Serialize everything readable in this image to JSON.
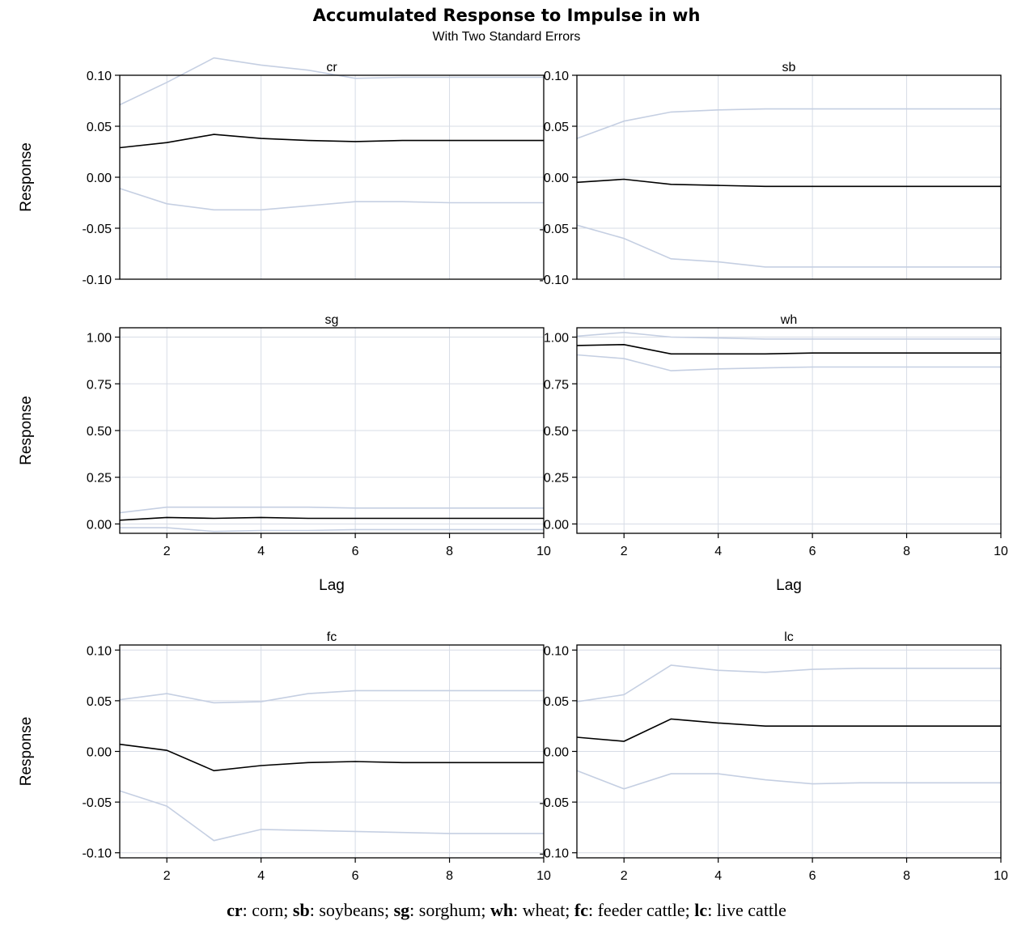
{
  "title": "Accumulated Response to Impulse in wh",
  "subtitle": "With Two Standard Errors",
  "caption": [
    {
      "code": "cr",
      "desc": ": corn; "
    },
    {
      "code": "sb",
      "desc": ": soybeans; "
    },
    {
      "code": "sg",
      "desc": ": sorghum; "
    },
    {
      "code": "wh",
      "desc": ": wheat; "
    },
    {
      "code": "fc",
      "desc": ": feeder cattle; "
    },
    {
      "code": "lc",
      "desc": ": live cattle"
    }
  ],
  "chart_data": [
    {
      "type": "line",
      "panel": "cr",
      "title": "cr",
      "ylabel": "Response",
      "xlabel": "",
      "xlim": [
        1,
        10
      ],
      "ylim": [
        -0.1,
        0.1
      ],
      "xticks": [
        2,
        4,
        6,
        8,
        10
      ],
      "yticks": [
        -0.1,
        -0.05,
        0.0,
        0.05,
        0.1
      ],
      "grid": true,
      "show_xticks": false,
      "x": [
        1,
        2,
        3,
        4,
        5,
        6,
        7,
        8,
        9,
        10
      ],
      "response": [
        0.029,
        0.034,
        0.042,
        0.038,
        0.036,
        0.035,
        0.036,
        0.036,
        0.036,
        0.036
      ],
      "upper": [
        0.071,
        0.093,
        0.117,
        0.11,
        0.105,
        0.097,
        0.098,
        0.098,
        0.098,
        0.098
      ],
      "lower": [
        -0.011,
        -0.026,
        -0.032,
        -0.032,
        -0.028,
        -0.024,
        -0.024,
        -0.025,
        -0.025,
        -0.025
      ]
    },
    {
      "type": "line",
      "panel": "sb",
      "title": "sb",
      "ylabel": "",
      "xlabel": "",
      "xlim": [
        1,
        10
      ],
      "ylim": [
        -0.1,
        0.1
      ],
      "xticks": [
        2,
        4,
        6,
        8,
        10
      ],
      "yticks": [
        -0.1,
        -0.05,
        0.0,
        0.05,
        0.1
      ],
      "grid": true,
      "show_xticks": false,
      "x": [
        1,
        2,
        3,
        4,
        5,
        6,
        7,
        8,
        9,
        10
      ],
      "response": [
        -0.005,
        -0.002,
        -0.007,
        -0.008,
        -0.009,
        -0.009,
        -0.009,
        -0.009,
        -0.009,
        -0.009
      ],
      "upper": [
        0.038,
        0.055,
        0.064,
        0.066,
        0.067,
        0.067,
        0.067,
        0.067,
        0.067,
        0.067
      ],
      "lower": [
        -0.047,
        -0.06,
        -0.08,
        -0.083,
        -0.088,
        -0.088,
        -0.088,
        -0.088,
        -0.088,
        -0.088
      ]
    },
    {
      "type": "line",
      "panel": "sg",
      "title": "sg",
      "ylabel": "Response",
      "xlabel": "Lag",
      "xlim": [
        1,
        10
      ],
      "ylim": [
        -0.05,
        1.05
      ],
      "xticks": [
        2,
        4,
        6,
        8,
        10
      ],
      "yticks": [
        0.0,
        0.25,
        0.5,
        0.75,
        1.0
      ],
      "grid": true,
      "show_xticks": true,
      "x": [
        1,
        2,
        3,
        4,
        5,
        6,
        7,
        8,
        9,
        10
      ],
      "response": [
        0.02,
        0.035,
        0.03,
        0.035,
        0.03,
        0.03,
        0.03,
        0.03,
        0.03,
        0.03
      ],
      "upper": [
        0.06,
        0.09,
        0.09,
        0.09,
        0.09,
        0.085,
        0.085,
        0.085,
        0.085,
        0.085
      ],
      "lower": [
        -0.02,
        -0.02,
        -0.04,
        -0.035,
        -0.035,
        -0.03,
        -0.03,
        -0.03,
        -0.03,
        -0.03
      ]
    },
    {
      "type": "line",
      "panel": "wh",
      "title": "wh",
      "ylabel": "",
      "xlabel": "Lag",
      "xlim": [
        1,
        10
      ],
      "ylim": [
        -0.05,
        1.05
      ],
      "xticks": [
        2,
        4,
        6,
        8,
        10
      ],
      "yticks": [
        0.0,
        0.25,
        0.5,
        0.75,
        1.0
      ],
      "grid": true,
      "show_xticks": true,
      "x": [
        1,
        2,
        3,
        4,
        5,
        6,
        7,
        8,
        9,
        10
      ],
      "response": [
        0.955,
        0.96,
        0.91,
        0.91,
        0.91,
        0.915,
        0.915,
        0.915,
        0.915,
        0.915
      ],
      "upper": [
        1.005,
        1.025,
        1.0,
        0.995,
        0.99,
        0.99,
        0.99,
        0.99,
        0.99,
        0.99
      ],
      "lower": [
        0.905,
        0.885,
        0.82,
        0.83,
        0.835,
        0.84,
        0.84,
        0.84,
        0.84,
        0.84
      ]
    },
    {
      "type": "line",
      "panel": "fc",
      "title": "fc",
      "ylabel": "Response",
      "xlabel": "",
      "xlim": [
        1,
        10
      ],
      "ylim": [
        -0.105,
        0.105
      ],
      "xticks": [
        2,
        4,
        6,
        8,
        10
      ],
      "yticks": [
        -0.1,
        -0.05,
        0.0,
        0.05,
        0.1
      ],
      "grid": true,
      "show_xticks": true,
      "x": [
        1,
        2,
        3,
        4,
        5,
        6,
        7,
        8,
        9,
        10
      ],
      "response": [
        0.007,
        0.001,
        -0.019,
        -0.014,
        -0.011,
        -0.01,
        -0.011,
        -0.011,
        -0.011,
        -0.011
      ],
      "upper": [
        0.051,
        0.057,
        0.048,
        0.049,
        0.057,
        0.06,
        0.06,
        0.06,
        0.06,
        0.06
      ],
      "lower": [
        -0.039,
        -0.054,
        -0.088,
        -0.077,
        -0.078,
        -0.079,
        -0.08,
        -0.081,
        -0.081,
        -0.081
      ]
    },
    {
      "type": "line",
      "panel": "lc",
      "title": "lc",
      "ylabel": "",
      "xlabel": "",
      "xlim": [
        1,
        10
      ],
      "ylim": [
        -0.105,
        0.105
      ],
      "xticks": [
        2,
        4,
        6,
        8,
        10
      ],
      "yticks": [
        -0.1,
        -0.05,
        0.0,
        0.05,
        0.1
      ],
      "grid": true,
      "show_xticks": true,
      "x": [
        1,
        2,
        3,
        4,
        5,
        6,
        7,
        8,
        9,
        10
      ],
      "response": [
        0.014,
        0.01,
        0.032,
        0.028,
        0.025,
        0.025,
        0.025,
        0.025,
        0.025,
        0.025
      ],
      "upper": [
        0.049,
        0.056,
        0.085,
        0.08,
        0.078,
        0.081,
        0.082,
        0.082,
        0.082,
        0.082
      ],
      "lower": [
        -0.019,
        -0.037,
        -0.022,
        -0.022,
        -0.028,
        -0.032,
        -0.031,
        -0.031,
        -0.031,
        -0.031
      ]
    }
  ]
}
